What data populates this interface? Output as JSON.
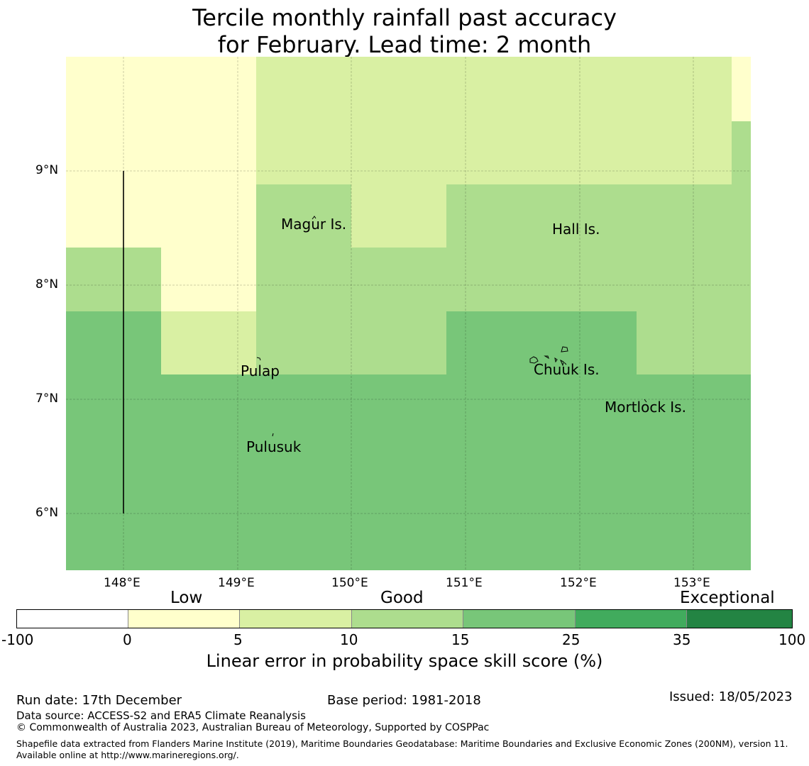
{
  "title": {
    "line1": "Tercile monthly rainfall past accuracy",
    "line2": "for February. Lead time: 2 month"
  },
  "map": {
    "lat_labels": [
      "9°N",
      "8°N",
      "7°N",
      "6°N"
    ],
    "lon_labels": [
      "148°E",
      "149°E",
      "150°E",
      "151°E",
      "152°E",
      "153°E"
    ],
    "places": [
      {
        "name": "Magur Is.",
        "key": "magur"
      },
      {
        "name": "Hall Is.",
        "key": "hall"
      },
      {
        "name": "Pulap",
        "key": "pulap"
      },
      {
        "name": "Chuuk Is.",
        "key": "chuuk"
      },
      {
        "name": "Mortlock Is.",
        "key": "mortlock"
      },
      {
        "name": "Pulusuk",
        "key": "pulusuk"
      }
    ],
    "colors": {
      "c0_5": "#ffffcc",
      "c5_10": "#d9f0a3",
      "c10_15": "#addd8e",
      "c15_25": "#78c679",
      "c25_35": "#41ab5d",
      "c35_100": "#238443"
    }
  },
  "colorbar": {
    "categories": {
      "low": "Low",
      "good": "Good",
      "exceptional": "Exceptional"
    },
    "ticks": [
      "-100",
      "0",
      "5",
      "10",
      "15",
      "25",
      "35",
      "100"
    ],
    "colors": [
      "#ffffff",
      "#ffffcc",
      "#d9f0a3",
      "#addd8e",
      "#78c679",
      "#41ab5d",
      "#238443"
    ],
    "label": "Linear error in probability space skill score (%)"
  },
  "footer": {
    "run_date": "Run date: 17th December",
    "base_period": "Base period: 1981-2018",
    "issued": "Issued: 18/05/2023",
    "data_source": "Data source: ACCESS-S2 and ERA5 Climate Reanalysis",
    "copyright": "© Commonwealth of Australia 2023, Australian Bureau of Meteorology, Supported by COSPPac",
    "shapefile": "Shapefile data extracted from Flanders Marine Institute (2019), Maritime Boundaries Geodatabase: Maritime Boundaries and Exclusive Economic Zones (200NM), version 11. Available online at http://www.marineregions.org/."
  }
}
